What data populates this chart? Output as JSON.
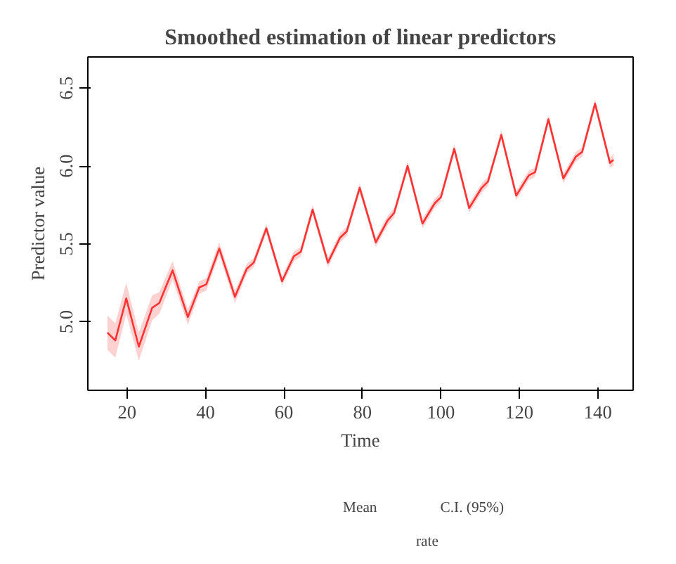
{
  "chart_data": {
    "type": "line",
    "title": "Smoothed estimation of linear predictors",
    "xlabel": "Time",
    "ylabel": "Predictor value",
    "xlim": [
      10,
      149
    ],
    "ylim": [
      4.56,
      6.7
    ],
    "xticks": [
      20,
      40,
      60,
      80,
      100,
      120,
      140
    ],
    "yticks": [
      {
        "value": 5,
        "label": "5.0"
      },
      5.5,
      {
        "value": 6,
        "label": "6.0"
      },
      6.5
    ],
    "x": [
      15,
      17,
      19.8,
      23,
      26.4,
      28.2,
      31.6,
      35.5,
      38.4,
      40.2,
      43.5,
      47.5,
      50.5,
      52.3,
      55.5,
      59.5,
      62.5,
      64.3,
      67.3,
      71.2,
      74.3,
      76,
      79.3,
      83.4,
      86.4,
      88.1,
      91.5,
      95.3,
      98.4,
      100,
      103.4,
      107.2,
      110.4,
      112,
      115.4,
      119.2,
      122.4,
      124,
      127.4,
      131.2,
      134.4,
      136,
      139.3,
      143.1,
      144
    ],
    "series": [
      {
        "name": "rate",
        "color": "#ff3333",
        "values": [
          4.93,
          4.88,
          5.15,
          4.84,
          5.09,
          5.12,
          5.33,
          5.03,
          5.22,
          5.24,
          5.47,
          5.16,
          5.34,
          5.38,
          5.6,
          5.26,
          5.42,
          5.45,
          5.72,
          5.38,
          5.54,
          5.58,
          5.86,
          5.51,
          5.65,
          5.7,
          6.0,
          5.63,
          5.76,
          5.8,
          6.11,
          5.73,
          5.86,
          5.9,
          6.2,
          5.81,
          5.94,
          5.96,
          6.3,
          5.92,
          6.06,
          6.09,
          6.4,
          6.02,
          6.04
        ],
        "lower": [
          4.82,
          4.77,
          5.05,
          4.75,
          5.01,
          5.05,
          5.27,
          4.98,
          5.18,
          5.2,
          5.43,
          5.12,
          5.31,
          5.35,
          5.57,
          5.23,
          5.39,
          5.42,
          5.69,
          5.35,
          5.51,
          5.55,
          5.83,
          5.48,
          5.62,
          5.67,
          5.97,
          5.6,
          5.73,
          5.77,
          6.08,
          5.7,
          5.83,
          5.87,
          6.17,
          5.78,
          5.91,
          5.93,
          6.27,
          5.89,
          6.03,
          6.06,
          6.37,
          5.99,
          6.0
        ],
        "upper": [
          5.04,
          4.99,
          5.25,
          4.93,
          5.17,
          5.19,
          5.39,
          5.08,
          5.26,
          5.28,
          5.51,
          5.2,
          5.37,
          5.41,
          5.63,
          5.29,
          5.45,
          5.48,
          5.75,
          5.41,
          5.57,
          5.61,
          5.89,
          5.54,
          5.68,
          5.73,
          6.03,
          5.66,
          5.79,
          5.83,
          6.14,
          5.76,
          5.89,
          5.93,
          6.23,
          5.84,
          5.97,
          5.99,
          6.33,
          5.95,
          6.09,
          6.12,
          6.43,
          6.05,
          6.08
        ]
      }
    ],
    "annotations": [
      "Mean",
      "C.I. (95%)"
    ],
    "legend": "bottom",
    "grid": false,
    "marker": "none",
    "line_style": "solid"
  }
}
